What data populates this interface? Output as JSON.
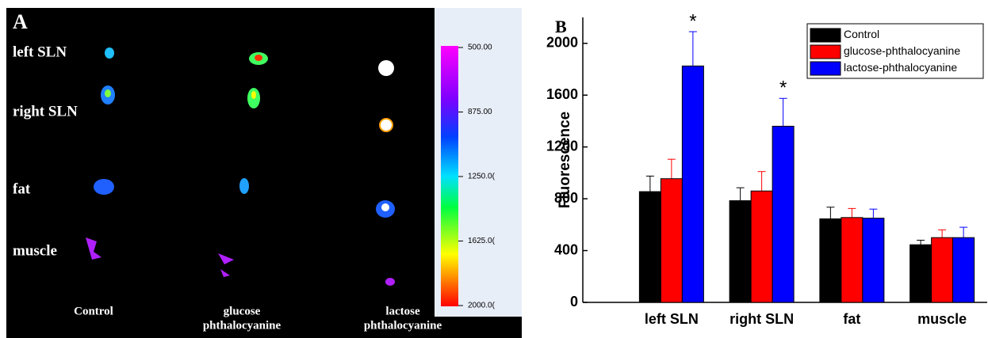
{
  "panel_a": {
    "label": "A",
    "rows": [
      "left  SLN",
      "right SLN",
      "fat",
      "muscle"
    ],
    "columns": [
      [
        "Control"
      ],
      [
        "glucose",
        "phthalocyanine"
      ],
      [
        "lactose",
        "phthalocyanine"
      ]
    ],
    "colorbar_labels": [
      "500.00",
      "875.00",
      "1250.0(",
      "1625.0(",
      "2000.0("
    ]
  },
  "chart_data": {
    "type": "bar",
    "label": "B",
    "y_label": "Fluorescence",
    "categories": [
      "left SLN",
      "right SLN",
      "fat",
      "muscle"
    ],
    "series": [
      {
        "name": "Control",
        "color": "#000000",
        "values": [
          855,
          785,
          645,
          445
        ],
        "errors": [
          120,
          100,
          90,
          35
        ]
      },
      {
        "name": "glucose-phthalocyanine",
        "color": "#ff0000",
        "values": [
          955,
          860,
          655,
          500
        ],
        "errors": [
          150,
          150,
          70,
          60
        ]
      },
      {
        "name": "lactose-phthalocyanine",
        "color": "#0000ff",
        "values": [
          1825,
          1360,
          650,
          500
        ],
        "errors": [
          265,
          215,
          70,
          80
        ]
      }
    ],
    "annotations": [
      {
        "text": "*",
        "category": "left SLN",
        "series": "lactose-phthalocyanine"
      },
      {
        "text": "*",
        "category": "right SLN",
        "series": "lactose-phthalocyanine"
      }
    ],
    "ylim": [
      0,
      2200
    ],
    "yticks": [
      0,
      400,
      800,
      1200,
      1600,
      2000
    ],
    "legend": "upper right"
  }
}
